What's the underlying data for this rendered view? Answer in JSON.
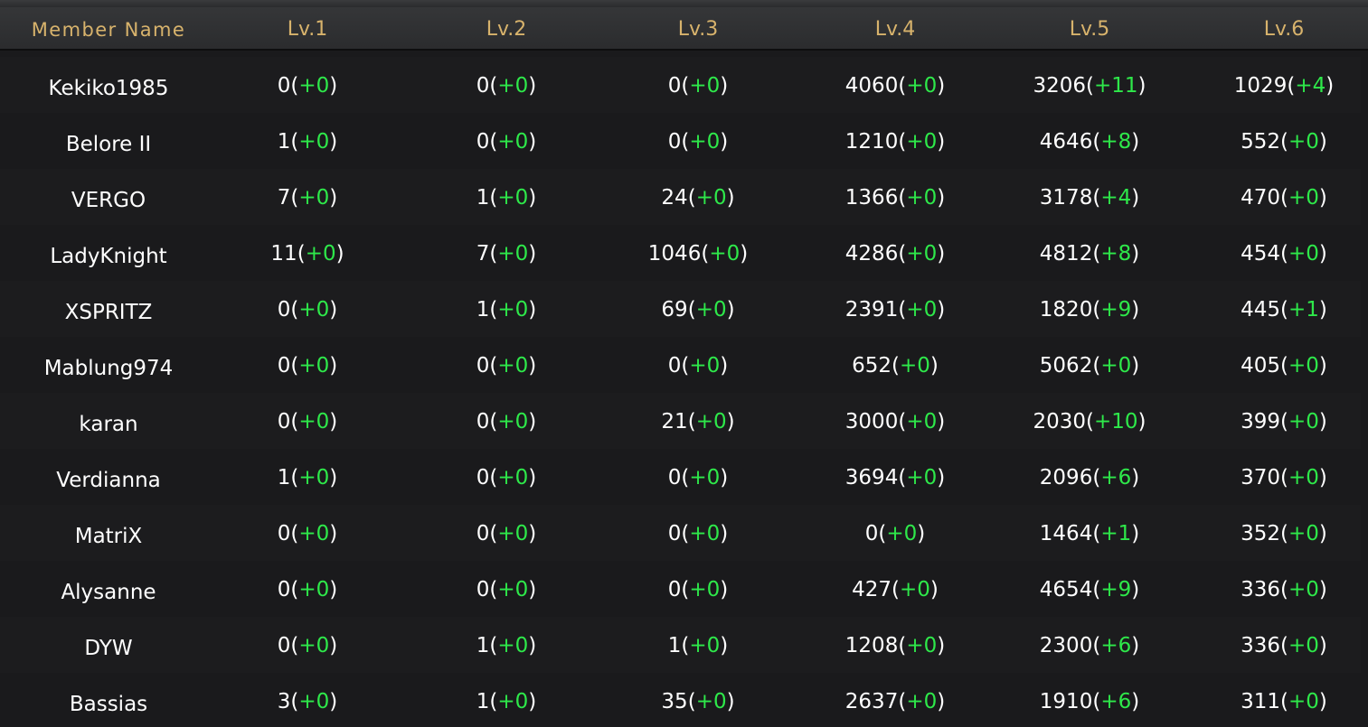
{
  "header": {
    "columns": [
      "Member Name",
      "Lv.1",
      "Lv.2",
      "Lv.3",
      "Lv.4",
      "Lv.5",
      "Lv.6"
    ]
  },
  "members": [
    {
      "name": "Kekiko1985",
      "levels": [
        {
          "value": "0",
          "delta": "+0"
        },
        {
          "value": "0",
          "delta": "+0"
        },
        {
          "value": "0",
          "delta": "+0"
        },
        {
          "value": "4060",
          "delta": "+0"
        },
        {
          "value": "3206",
          "delta": "+11"
        },
        {
          "value": "1029",
          "delta": "+4"
        }
      ]
    },
    {
      "name": "Belore II",
      "levels": [
        {
          "value": "1",
          "delta": "+0"
        },
        {
          "value": "0",
          "delta": "+0"
        },
        {
          "value": "0",
          "delta": "+0"
        },
        {
          "value": "1210",
          "delta": "+0"
        },
        {
          "value": "4646",
          "delta": "+8"
        },
        {
          "value": "552",
          "delta": "+0"
        }
      ]
    },
    {
      "name": "VERGO",
      "levels": [
        {
          "value": "7",
          "delta": "+0"
        },
        {
          "value": "1",
          "delta": "+0"
        },
        {
          "value": "24",
          "delta": "+0"
        },
        {
          "value": "1366",
          "delta": "+0"
        },
        {
          "value": "3178",
          "delta": "+4"
        },
        {
          "value": "470",
          "delta": "+0"
        }
      ]
    },
    {
      "name": "LadyKnight",
      "levels": [
        {
          "value": "11",
          "delta": "+0"
        },
        {
          "value": "7",
          "delta": "+0"
        },
        {
          "value": "1046",
          "delta": "+0"
        },
        {
          "value": "4286",
          "delta": "+0"
        },
        {
          "value": "4812",
          "delta": "+8"
        },
        {
          "value": "454",
          "delta": "+0"
        }
      ]
    },
    {
      "name": "XSPRITZ",
      "levels": [
        {
          "value": "0",
          "delta": "+0"
        },
        {
          "value": "1",
          "delta": "+0"
        },
        {
          "value": "69",
          "delta": "+0"
        },
        {
          "value": "2391",
          "delta": "+0"
        },
        {
          "value": "1820",
          "delta": "+9"
        },
        {
          "value": "445",
          "delta": "+1"
        }
      ]
    },
    {
      "name": "Mablung974",
      "levels": [
        {
          "value": "0",
          "delta": "+0"
        },
        {
          "value": "0",
          "delta": "+0"
        },
        {
          "value": "0",
          "delta": "+0"
        },
        {
          "value": "652",
          "delta": "+0"
        },
        {
          "value": "5062",
          "delta": "+0"
        },
        {
          "value": "405",
          "delta": "+0"
        }
      ]
    },
    {
      "name": "karan",
      "levels": [
        {
          "value": "0",
          "delta": "+0"
        },
        {
          "value": "0",
          "delta": "+0"
        },
        {
          "value": "21",
          "delta": "+0"
        },
        {
          "value": "3000",
          "delta": "+0"
        },
        {
          "value": "2030",
          "delta": "+10"
        },
        {
          "value": "399",
          "delta": "+0"
        }
      ]
    },
    {
      "name": "Verdianna",
      "levels": [
        {
          "value": "1",
          "delta": "+0"
        },
        {
          "value": "0",
          "delta": "+0"
        },
        {
          "value": "0",
          "delta": "+0"
        },
        {
          "value": "3694",
          "delta": "+0"
        },
        {
          "value": "2096",
          "delta": "+6"
        },
        {
          "value": "370",
          "delta": "+0"
        }
      ]
    },
    {
      "name": "MatriX",
      "levels": [
        {
          "value": "0",
          "delta": "+0"
        },
        {
          "value": "0",
          "delta": "+0"
        },
        {
          "value": "0",
          "delta": "+0"
        },
        {
          "value": "0",
          "delta": "+0"
        },
        {
          "value": "1464",
          "delta": "+1"
        },
        {
          "value": "352",
          "delta": "+0"
        }
      ]
    },
    {
      "name": "Alysanne",
      "levels": [
        {
          "value": "0",
          "delta": "+0"
        },
        {
          "value": "0",
          "delta": "+0"
        },
        {
          "value": "0",
          "delta": "+0"
        },
        {
          "value": "427",
          "delta": "+0"
        },
        {
          "value": "4654",
          "delta": "+9"
        },
        {
          "value": "336",
          "delta": "+0"
        }
      ]
    },
    {
      "name": "DYW",
      "levels": [
        {
          "value": "0",
          "delta": "+0"
        },
        {
          "value": "1",
          "delta": "+0"
        },
        {
          "value": "1",
          "delta": "+0"
        },
        {
          "value": "1208",
          "delta": "+0"
        },
        {
          "value": "2300",
          "delta": "+6"
        },
        {
          "value": "336",
          "delta": "+0"
        }
      ]
    },
    {
      "name": "Bassias",
      "levels": [
        {
          "value": "3",
          "delta": "+0"
        },
        {
          "value": "1",
          "delta": "+0"
        },
        {
          "value": "35",
          "delta": "+0"
        },
        {
          "value": "2637",
          "delta": "+0"
        },
        {
          "value": "1910",
          "delta": "+6"
        },
        {
          "value": "311",
          "delta": "+0"
        }
      ]
    }
  ],
  "colors": {
    "header_text": "#d8b36c",
    "value_text": "#ffffff",
    "delta_text": "#2ee84a"
  }
}
